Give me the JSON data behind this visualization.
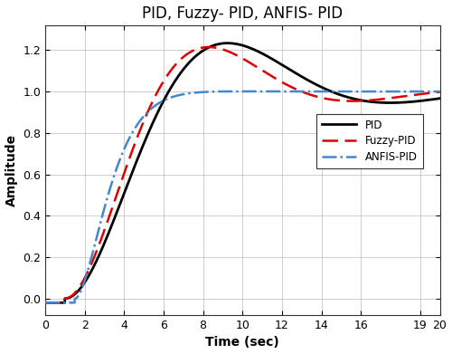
{
  "title": "PID, Fuzzy- PID, ANFIS- PID",
  "xlabel": "Time (sec)",
  "ylabel": "Amplitude",
  "xlim": [
    0,
    20
  ],
  "ylim": [
    -0.08,
    1.32
  ],
  "yticks": [
    0,
    0.2,
    0.4,
    0.6,
    0.8,
    1.0,
    1.2
  ],
  "xticks": [
    0,
    2,
    4,
    6,
    8,
    10,
    12,
    14,
    16,
    19,
    20
  ],
  "pid_color": "#000000",
  "fuzzy_color": "#dd0000",
  "anfis_color": "#4488cc",
  "legend_labels": [
    "PID",
    "Fuzzy-PID",
    "ANFIS-PID"
  ],
  "title_fontsize": 12,
  "axis_label_fontsize": 10,
  "tick_fontsize": 9,
  "background_color": "#ffffff",
  "grid_color": "#bbbbbb"
}
